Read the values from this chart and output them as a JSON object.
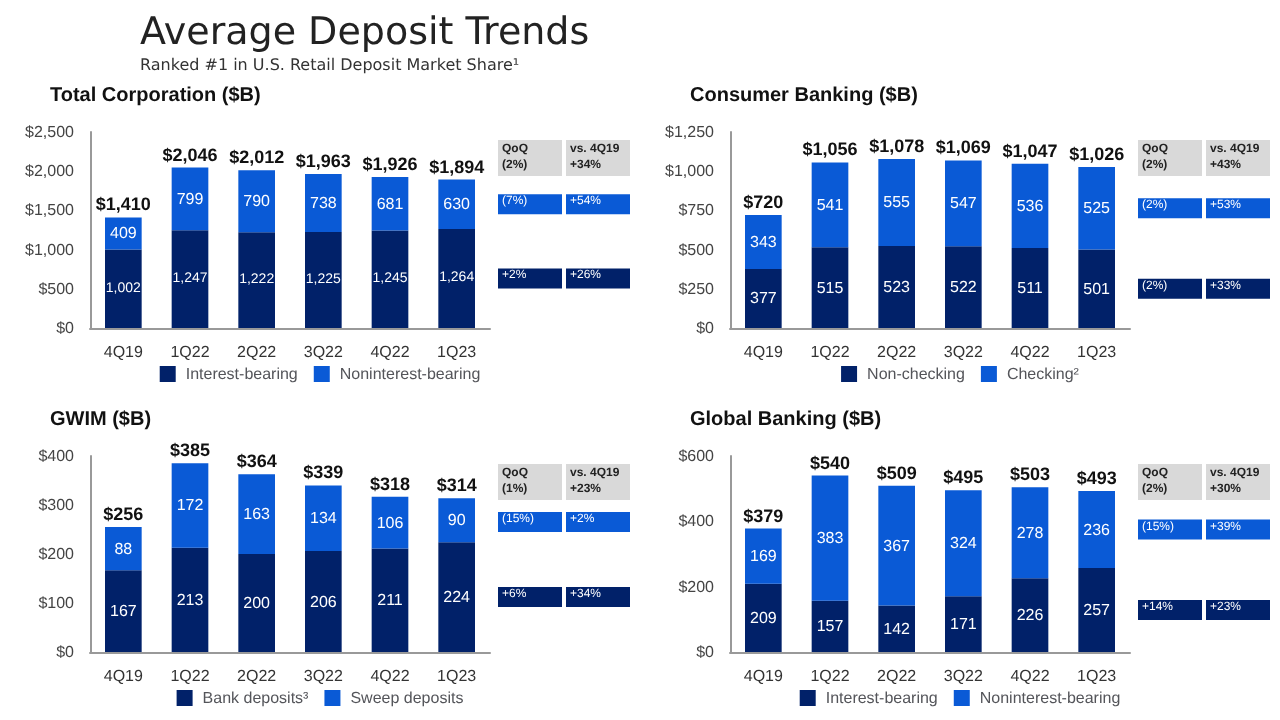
{
  "chart_data": [
    {
      "type": "bar",
      "title": "Total Corporation ($B)",
      "stacked": true,
      "data_labels": true,
      "legend": "bottom",
      "grid": false,
      "annotations": [
        "Average Deposit Trends",
        "Ranked #1 in U.S. Retail Deposit Market Share¹",
        "QoQ (2%)",
        "vs. 4Q19 +34%",
        "(7%)",
        "+54%",
        "+2%",
        "+26%"
      ],
      "categories": [
        "4Q19",
        "1Q22",
        "2Q22",
        "3Q22",
        "4Q22",
        "1Q23"
      ],
      "series": [
        {
          "name": "Interest-bearing",
          "color": "#012169",
          "values": [
            1002,
            1247,
            1222,
            1225,
            1245,
            1264
          ],
          "value_labels": [
            "1,002",
            "1,247",
            "1,222",
            "1,225",
            "1,245",
            "1,264"
          ]
        },
        {
          "name": "Noninterest-bearing",
          "color": "#0a5ad6",
          "values": [
            409,
            799,
            790,
            738,
            681,
            630
          ]
        }
      ],
      "totals": [
        "$1,410",
        "$2,046",
        "$2,012",
        "$1,963",
        "$1,926",
        "$1,894"
      ],
      "ylim": [
        0,
        2500
      ],
      "yticks": [
        {
          "value": 0,
          "label": "$0"
        },
        {
          "value": 500,
          "label": "$500"
        },
        {
          "value": 1000,
          "label": "$1,000"
        },
        {
          "value": 1500,
          "label": "$1,500"
        },
        {
          "value": 2000,
          "label": "$2,000"
        },
        {
          "value": 2500,
          "label": "$2,500"
        }
      ]
    },
    {
      "type": "bar",
      "title": "Consumer Banking ($B)",
      "stacked": true,
      "data_labels": true,
      "legend": "bottom",
      "grid": false,
      "annotations": [
        "QoQ (2%)",
        "vs. 4Q19 +43%",
        "(2%)",
        "+53%",
        "(2%)",
        "+33%"
      ],
      "categories": [
        "4Q19",
        "1Q22",
        "2Q22",
        "3Q22",
        "4Q22",
        "1Q23"
      ],
      "series": [
        {
          "name": "Non-checking",
          "color": "#012169",
          "values": [
            377,
            515,
            523,
            522,
            511,
            501
          ]
        },
        {
          "name": "Checking²",
          "color": "#0a5ad6",
          "values": [
            343,
            541,
            555,
            547,
            536,
            525
          ]
        }
      ],
      "totals": [
        "$720",
        "$1,056",
        "$1,078",
        "$1,069",
        "$1,047",
        "$1,026"
      ],
      "ylim": [
        0,
        1250
      ],
      "yticks": [
        {
          "value": 0,
          "label": "$0"
        },
        {
          "value": 250,
          "label": "$250"
        },
        {
          "value": 500,
          "label": "$500"
        },
        {
          "value": 750,
          "label": "$750"
        },
        {
          "value": 1000,
          "label": "$1,000"
        },
        {
          "value": 1250,
          "label": "$1,250"
        }
      ]
    },
    {
      "type": "bar",
      "title": "GWIM ($B)",
      "stacked": true,
      "data_labels": true,
      "legend": "bottom",
      "grid": false,
      "annotations": [
        "QoQ (1%)",
        "vs. 4Q19 +23%",
        "(15%)",
        "+2%",
        "+6%",
        "+34%"
      ],
      "categories": [
        "4Q19",
        "1Q22",
        "2Q22",
        "3Q22",
        "4Q22",
        "1Q23"
      ],
      "series": [
        {
          "name": "Bank deposits³",
          "color": "#012169",
          "values": [
            167,
            213,
            200,
            206,
            211,
            224
          ]
        },
        {
          "name": "Sweep deposits",
          "color": "#0a5ad6",
          "values": [
            88,
            172,
            163,
            134,
            106,
            90
          ]
        }
      ],
      "totals": [
        "$256",
        "$385",
        "$364",
        "$339",
        "$318",
        "$314"
      ],
      "ylim": [
        0,
        400
      ],
      "yticks": [
        {
          "value": 0,
          "label": "$0"
        },
        {
          "value": 100,
          "label": "$100"
        },
        {
          "value": 200,
          "label": "$200"
        },
        {
          "value": 300,
          "label": "$300"
        },
        {
          "value": 400,
          "label": "$400"
        }
      ]
    },
    {
      "type": "bar",
      "title": "Global Banking ($B)",
      "stacked": true,
      "data_labels": true,
      "legend": "bottom",
      "grid": false,
      "annotations": [
        "QoQ (2%)",
        "vs. 4Q19 +30%",
        "(15%)",
        "+39%",
        "+14%",
        "+23%"
      ],
      "categories": [
        "4Q19",
        "1Q22",
        "2Q22",
        "3Q22",
        "4Q22",
        "1Q23"
      ],
      "series": [
        {
          "name": "Interest-bearing",
          "color": "#012169",
          "values": [
            209,
            157,
            142,
            171,
            226,
            257
          ]
        },
        {
          "name": "Noninterest-bearing",
          "color": "#0a5ad6",
          "values": [
            169,
            383,
            367,
            324,
            278,
            236
          ]
        }
      ],
      "totals": [
        "$379",
        "$540",
        "$509",
        "$495",
        "$503",
        "$493"
      ],
      "ylim": [
        0,
        600
      ],
      "yticks": [
        {
          "value": 0,
          "label": "$0"
        },
        {
          "value": 200,
          "label": "$200"
        },
        {
          "value": 400,
          "label": "$400"
        },
        {
          "value": 600,
          "label": "$600"
        }
      ]
    }
  ]
}
